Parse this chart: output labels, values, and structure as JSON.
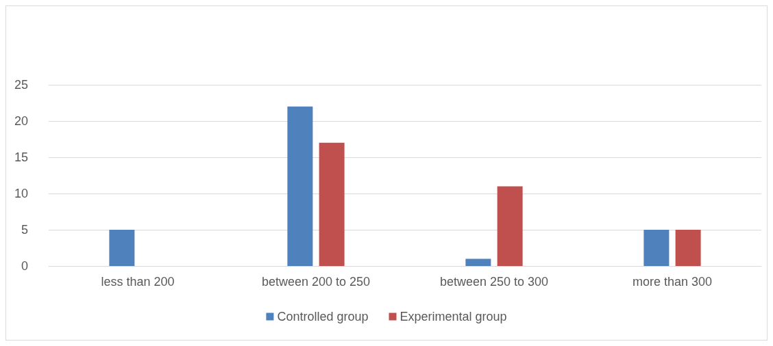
{
  "chart_data": {
    "type": "bar",
    "categories": [
      "less than 200",
      "between 200 to 250",
      "between 250 to 300",
      "more than 300"
    ],
    "series": [
      {
        "name": "Controlled group",
        "color": "#4f81bd",
        "values": [
          5,
          22,
          1,
          5
        ]
      },
      {
        "name": "Experimental group",
        "color": "#c0504d",
        "values": [
          0,
          17,
          11,
          5
        ]
      }
    ],
    "ylim": [
      0,
      25
    ],
    "yticks": [
      0,
      5,
      10,
      15,
      20,
      25
    ],
    "grid": "y",
    "legend": "bottom"
  }
}
